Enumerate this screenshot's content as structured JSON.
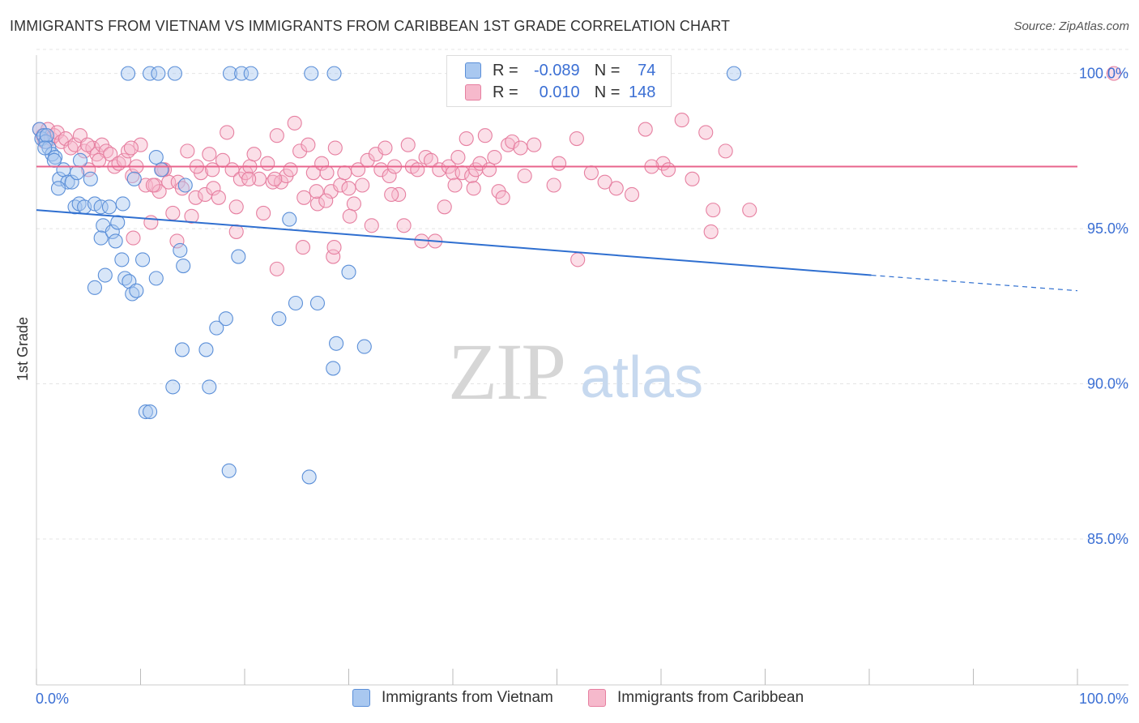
{
  "title": "IMMIGRANTS FROM VIETNAM VS IMMIGRANTS FROM CARIBBEAN 1ST GRADE CORRELATION CHART",
  "source": "Source: ZipAtlas.com",
  "watermark": {
    "zip": "ZIP",
    "atlas": "atlas"
  },
  "legend": {
    "r_label": "R =",
    "n_label": "N =",
    "vietnam": {
      "r": "-0.089",
      "n": "74"
    },
    "caribbean": {
      "r": "0.010",
      "n": "148"
    }
  },
  "colors": {
    "vietnam_fill": "#a9c8f0",
    "vietnam_stroke": "#5b8fd8",
    "vietnam_line": "#2f6fd0",
    "caribbean_fill": "#f6b9cc",
    "caribbean_stroke": "#e67fa0",
    "caribbean_line": "#e8648c",
    "tick_text": "#3b6fd4",
    "grid": "#e4e4e4"
  },
  "chart_data": {
    "type": "scatter",
    "ylabel": "1st Grade",
    "xlim": [
      0,
      100
    ],
    "ylim": [
      80.3,
      100.8
    ],
    "x_tick_labels": [
      "0.0%",
      "100.0%"
    ],
    "y_ticks": [
      85,
      90,
      95,
      100
    ],
    "y_tick_labels": [
      "85.0%",
      "90.0%",
      "95.0%",
      "100.0%"
    ],
    "grid": "horizontal dashed",
    "legend_position": "top-center",
    "series": [
      {
        "name": "Immigrants from Vietnam",
        "r": -0.089,
        "n": 74,
        "trend": {
          "x0": 0,
          "y0": 95.6,
          "x1": 80.2,
          "y1": 93.5,
          "dashed_to_x": 100,
          "dashed_to_y": 93.0
        },
        "points": [
          [
            0.3,
            98.2
          ],
          [
            0.5,
            97.9
          ],
          [
            0.7,
            98.0
          ],
          [
            0.9,
            97.8
          ],
          [
            1.0,
            98.0
          ],
          [
            1.2,
            97.6
          ],
          [
            1.5,
            97.4
          ],
          [
            1.8,
            97.3
          ],
          [
            2.2,
            96.6
          ],
          [
            2.6,
            96.9
          ],
          [
            3.0,
            96.5
          ],
          [
            3.4,
            96.5
          ],
          [
            3.7,
            95.7
          ],
          [
            4.1,
            95.8
          ],
          [
            4.6,
            95.7
          ],
          [
            5.2,
            96.6
          ],
          [
            5.6,
            95.8
          ],
          [
            6.2,
            95.7
          ],
          [
            6.4,
            95.1
          ],
          [
            6.2,
            94.7
          ],
          [
            7.0,
            95.7
          ],
          [
            7.3,
            94.9
          ],
          [
            7.6,
            94.6
          ],
          [
            7.8,
            95.2
          ],
          [
            8.3,
            95.8
          ],
          [
            8.2,
            94.0
          ],
          [
            8.5,
            93.4
          ],
          [
            6.6,
            93.5
          ],
          [
            5.6,
            93.1
          ],
          [
            8.9,
            93.3
          ],
          [
            9.2,
            92.9
          ],
          [
            9.6,
            93.0
          ],
          [
            9.4,
            96.6
          ],
          [
            10.2,
            94.0
          ],
          [
            11.5,
            97.3
          ],
          [
            12.0,
            96.9
          ],
          [
            11.5,
            93.4
          ],
          [
            13.8,
            94.3
          ],
          [
            14.1,
            93.8
          ],
          [
            14.3,
            96.4
          ],
          [
            13.1,
            89.9
          ],
          [
            14.0,
            91.1
          ],
          [
            16.3,
            91.1
          ],
          [
            16.6,
            89.9
          ],
          [
            17.3,
            91.8
          ],
          [
            18.2,
            92.1
          ],
          [
            19.4,
            94.1
          ],
          [
            18.5,
            87.2
          ],
          [
            10.5,
            89.1
          ],
          [
            10.9,
            89.1
          ],
          [
            23.3,
            92.1
          ],
          [
            24.3,
            95.3
          ],
          [
            24.9,
            92.6
          ],
          [
            26.2,
            87.0
          ],
          [
            27.0,
            92.6
          ],
          [
            28.5,
            90.5
          ],
          [
            28.8,
            91.3
          ],
          [
            30.0,
            93.6
          ],
          [
            31.5,
            91.2
          ],
          [
            8.8,
            100.0
          ],
          [
            10.9,
            100.0
          ],
          [
            11.7,
            100.0
          ],
          [
            13.3,
            100.0
          ],
          [
            18.6,
            100.0
          ],
          [
            19.7,
            100.0
          ],
          [
            20.6,
            100.0
          ],
          [
            26.4,
            100.0
          ],
          [
            28.6,
            100.0
          ],
          [
            67.0,
            100.0
          ],
          [
            4.2,
            97.2
          ],
          [
            0.8,
            97.6
          ],
          [
            1.7,
            97.2
          ],
          [
            2.1,
            96.3
          ],
          [
            3.9,
            96.8
          ]
        ]
      },
      {
        "name": "Immigrants from Caribbean",
        "r": 0.01,
        "n": 148,
        "trend": {
          "x0": 0,
          "y0": 97.0,
          "x1": 100,
          "y1": 97.0
        },
        "points": [
          [
            0.3,
            98.2
          ],
          [
            0.6,
            98.0
          ],
          [
            0.8,
            97.8
          ],
          [
            1.1,
            98.2
          ],
          [
            1.4,
            97.9
          ],
          [
            1.7,
            98.0
          ],
          [
            2.0,
            98.1
          ],
          [
            2.4,
            97.8
          ],
          [
            2.8,
            97.9
          ],
          [
            3.3,
            97.6
          ],
          [
            3.7,
            97.7
          ],
          [
            4.2,
            98.0
          ],
          [
            4.6,
            97.5
          ],
          [
            5.0,
            96.9
          ],
          [
            5.4,
            97.6
          ],
          [
            5.8,
            97.4
          ],
          [
            6.3,
            97.7
          ],
          [
            6.7,
            97.5
          ],
          [
            7.1,
            97.4
          ],
          [
            7.5,
            97.0
          ],
          [
            7.9,
            97.1
          ],
          [
            8.4,
            97.2
          ],
          [
            8.8,
            97.5
          ],
          [
            9.2,
            96.7
          ],
          [
            9.6,
            97.0
          ],
          [
            10.0,
            97.7
          ],
          [
            10.5,
            96.4
          ],
          [
            11.0,
            95.2
          ],
          [
            11.4,
            96.4
          ],
          [
            11.8,
            96.2
          ],
          [
            12.3,
            96.9
          ],
          [
            12.7,
            96.5
          ],
          [
            13.1,
            95.5
          ],
          [
            13.6,
            96.5
          ],
          [
            14.0,
            96.3
          ],
          [
            14.5,
            97.5
          ],
          [
            14.9,
            95.4
          ],
          [
            15.3,
            96.0
          ],
          [
            15.8,
            96.8
          ],
          [
            16.2,
            96.1
          ],
          [
            16.6,
            97.4
          ],
          [
            17.0,
            96.3
          ],
          [
            17.5,
            96.0
          ],
          [
            17.9,
            97.2
          ],
          [
            18.3,
            98.1
          ],
          [
            18.8,
            96.9
          ],
          [
            19.2,
            95.7
          ],
          [
            19.6,
            96.6
          ],
          [
            20.1,
            96.8
          ],
          [
            20.5,
            97.0
          ],
          [
            20.9,
            97.4
          ],
          [
            21.4,
            96.6
          ],
          [
            21.8,
            95.5
          ],
          [
            22.2,
            97.1
          ],
          [
            22.7,
            96.5
          ],
          [
            23.1,
            98.0
          ],
          [
            23.5,
            96.5
          ],
          [
            24.0,
            96.7
          ],
          [
            24.4,
            96.9
          ],
          [
            24.8,
            98.4
          ],
          [
            25.3,
            97.5
          ],
          [
            25.7,
            96.0
          ],
          [
            26.1,
            97.7
          ],
          [
            26.6,
            96.8
          ],
          [
            27.0,
            95.8
          ],
          [
            27.4,
            97.1
          ],
          [
            27.9,
            96.8
          ],
          [
            28.3,
            96.2
          ],
          [
            28.7,
            97.6
          ],
          [
            29.2,
            96.4
          ],
          [
            29.6,
            96.8
          ],
          [
            30.0,
            96.3
          ],
          [
            30.5,
            95.8
          ],
          [
            30.9,
            96.9
          ],
          [
            31.3,
            96.4
          ],
          [
            31.8,
            97.2
          ],
          [
            32.2,
            95.1
          ],
          [
            32.6,
            97.4
          ],
          [
            33.1,
            96.9
          ],
          [
            33.5,
            97.6
          ],
          [
            33.9,
            96.7
          ],
          [
            34.4,
            97.0
          ],
          [
            34.8,
            96.1
          ],
          [
            35.3,
            95.1
          ],
          [
            35.7,
            97.7
          ],
          [
            36.1,
            97.0
          ],
          [
            36.6,
            96.9
          ],
          [
            37.0,
            94.6
          ],
          [
            37.4,
            97.3
          ],
          [
            37.9,
            97.2
          ],
          [
            38.3,
            94.6
          ],
          [
            38.7,
            96.9
          ],
          [
            39.2,
            95.7
          ],
          [
            39.6,
            97.0
          ],
          [
            40.0,
            96.8
          ],
          [
            40.5,
            97.3
          ],
          [
            40.9,
            96.8
          ],
          [
            41.3,
            97.9
          ],
          [
            41.8,
            96.7
          ],
          [
            42.2,
            96.9
          ],
          [
            42.6,
            97.1
          ],
          [
            43.1,
            98.0
          ],
          [
            43.5,
            96.9
          ],
          [
            44.0,
            97.3
          ],
          [
            44.4,
            96.2
          ],
          [
            44.8,
            96.0
          ],
          [
            45.3,
            97.7
          ],
          [
            45.7,
            97.8
          ],
          [
            23.1,
            93.7
          ],
          [
            25.6,
            94.4
          ],
          [
            28.5,
            94.1
          ],
          [
            28.6,
            94.4
          ],
          [
            19.2,
            94.9
          ],
          [
            13.5,
            94.6
          ],
          [
            9.3,
            94.7
          ],
          [
            64.8,
            94.9
          ],
          [
            68.5,
            95.6
          ],
          [
            65.0,
            95.6
          ],
          [
            52.0,
            94.0
          ],
          [
            46.5,
            97.6
          ],
          [
            47.8,
            97.7
          ],
          [
            50.2,
            97.1
          ],
          [
            51.9,
            97.9
          ],
          [
            53.3,
            96.8
          ],
          [
            55.7,
            96.3
          ],
          [
            58.5,
            98.2
          ],
          [
            60.2,
            97.1
          ],
          [
            62.0,
            98.5
          ],
          [
            64.3,
            98.1
          ],
          [
            66.2,
            97.5
          ],
          [
            4.9,
            97.7
          ],
          [
            6.0,
            97.2
          ],
          [
            9.1,
            97.6
          ],
          [
            11.2,
            96.4
          ],
          [
            12.1,
            96.9
          ],
          [
            15.4,
            97.0
          ],
          [
            16.9,
            96.9
          ],
          [
            20.4,
            96.6
          ],
          [
            22.9,
            96.6
          ],
          [
            26.9,
            96.2
          ],
          [
            27.8,
            95.9
          ],
          [
            30.1,
            95.4
          ],
          [
            34.1,
            96.1
          ],
          [
            40.2,
            96.4
          ],
          [
            42.0,
            96.3
          ],
          [
            46.9,
            96.7
          ],
          [
            49.7,
            96.4
          ],
          [
            54.6,
            96.5
          ],
          [
            57.2,
            96.1
          ],
          [
            59.1,
            97.0
          ],
          [
            60.7,
            96.9
          ],
          [
            63.0,
            96.6
          ],
          [
            103.5,
            100.0
          ]
        ]
      }
    ]
  },
  "bottom_legend": {
    "vietnam": "Immigrants from Vietnam",
    "caribbean": "Immigrants from Caribbean"
  }
}
